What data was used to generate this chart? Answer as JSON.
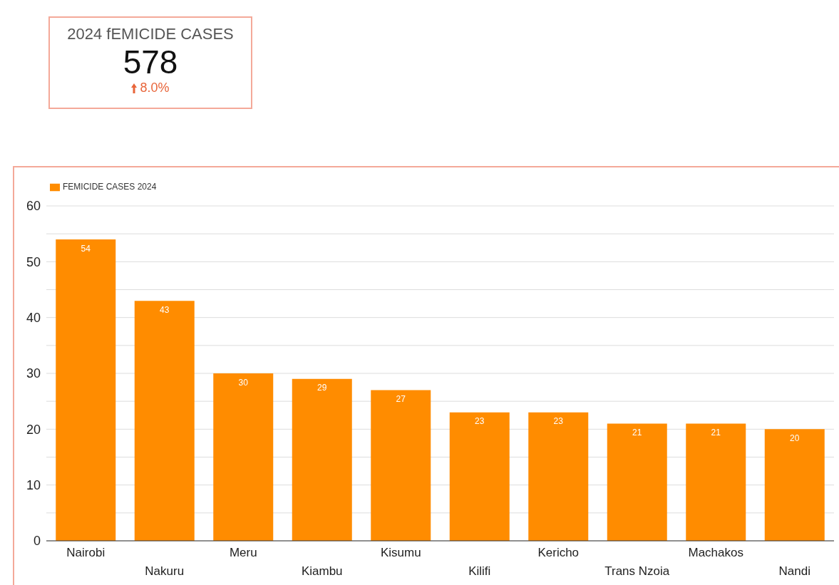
{
  "chart_data": [
    {
      "type": "other",
      "title": "2024 fEMICIDE CASES",
      "annotations": [
        "578",
        "8.0%"
      ]
    },
    {
      "type": "bar",
      "categories": [
        "Nairobi",
        "Nakuru",
        "Meru",
        "Kiambu",
        "Kisumu",
        "Kilifi",
        "Kericho",
        "Trans Nzoia",
        "Machakos",
        "Nandi"
      ],
      "series": [
        {
          "name": "FEMICIDE CASES 2024",
          "color": "#ff8c00",
          "values": [
            54,
            43,
            30,
            29,
            27,
            23,
            23,
            21,
            21,
            20
          ]
        }
      ],
      "ylim": [
        0,
        60
      ],
      "yticks": [
        0,
        {
          "value": 5,
          "label": null
        },
        10,
        {
          "value": 15,
          "label": null
        },
        20,
        {
          "value": 25,
          "label": null
        },
        30,
        {
          "value": 35,
          "label": null
        },
        40,
        {
          "value": 45,
          "label": null
        },
        50,
        {
          "value": 55,
          "label": null
        },
        60
      ],
      "grid": "y",
      "legend": "top left",
      "data_labels": true
    }
  ]
}
